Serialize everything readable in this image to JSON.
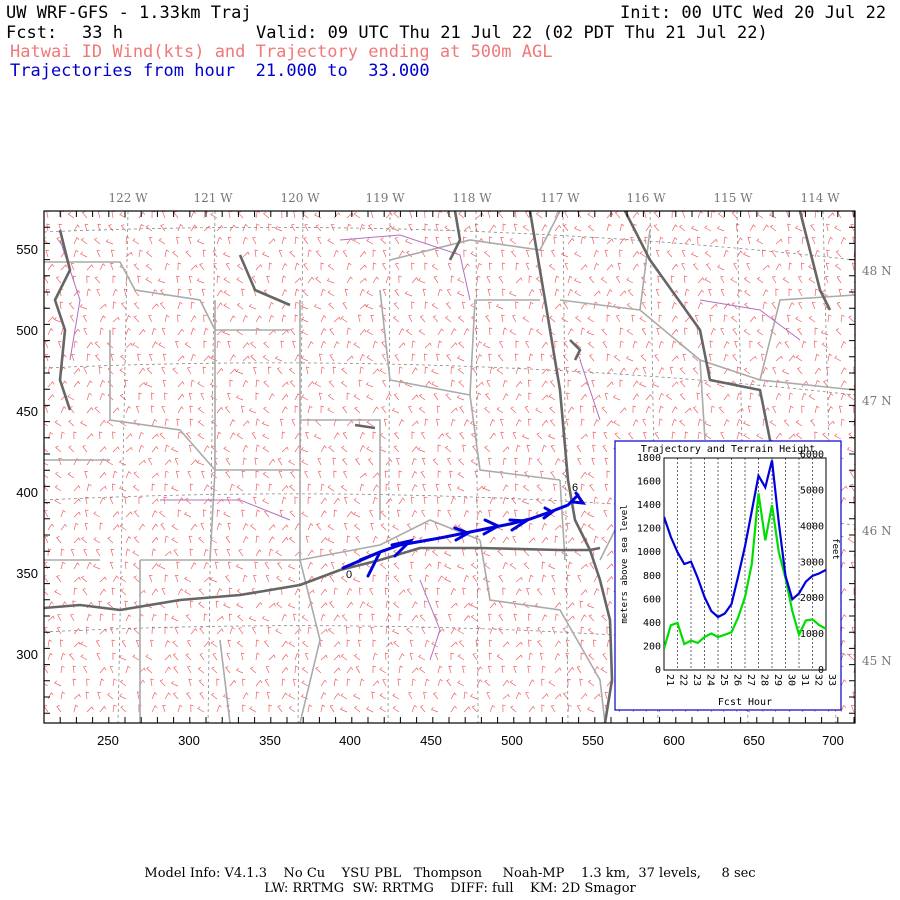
{
  "header": {
    "title": "UW WRF-GFS - 1.33km Traj",
    "init": "Init: 00 UTC Wed 20 Jul 22",
    "fcst_label": "Fcst:",
    "fcst_value": "33 h",
    "valid": "Valid: 09 UTC Thu 21 Jul 22 (02 PDT Thu 21 Jul 22)",
    "subtitle": "Hatwai ID Wind(kts) and Trajectory ending at 500m AGL",
    "traj_label": "Trajectories from hour  21.000 to  33.000"
  },
  "map": {
    "lon_labels": [
      "122 W",
      "121 W",
      "120 W",
      "119 W",
      "118 W",
      "117 W",
      "116 W",
      "115 W",
      "114 W"
    ],
    "lat_labels": [
      "48 N",
      "47 N",
      "46 N",
      "45 N"
    ],
    "x_ticks": [
      "250",
      "300",
      "350",
      "400",
      "450",
      "500",
      "550",
      "600",
      "650",
      "700"
    ],
    "y_ticks": [
      "550",
      "500",
      "450",
      "400",
      "350",
      "300"
    ],
    "colors": {
      "wind_barbs": "#f06060",
      "state_lines": "#666666",
      "county_lines": "#aaaaaa",
      "rivers": "#b070c0",
      "trajectory": "#0000dd"
    },
    "trajectory_start_label": "0",
    "trajectory_end_label": "6"
  },
  "inset": {
    "title": "Trajectory and Terrain Height",
    "ylabel_left": "meters above sea level",
    "ylabel_right": "feet",
    "xlabel": "Fcst Hour",
    "left_ticks": [
      "0",
      "200",
      "400",
      "600",
      "800",
      "1000",
      "1200",
      "1400",
      "1600",
      "1800"
    ],
    "right_ticks": [
      "0",
      "1000",
      "2000",
      "3000",
      "4000",
      "5000",
      "6000"
    ],
    "x_ticks": [
      "21",
      "22",
      "23",
      "24",
      "25",
      "26",
      "27",
      "28",
      "29",
      "30",
      "31",
      "32",
      "33"
    ],
    "colors": {
      "trajectory": "#0000dd",
      "terrain": "#00dd00"
    }
  },
  "chart_data": {
    "type": "line",
    "title": "Trajectory and Terrain Height",
    "xlabel": "Fcst Hour",
    "ylabel": "meters above sea level",
    "xlim": [
      21,
      33
    ],
    "ylim": [
      0,
      1800
    ],
    "series": [
      {
        "name": "",
        "x": [
          21,
          21.5,
          22,
          22.5,
          23,
          23.5,
          24,
          24.5,
          25,
          25.5,
          26,
          26.5,
          27,
          27.5,
          28,
          28.5,
          29,
          29.5,
          30,
          30.5,
          31,
          31.5,
          32,
          32.5,
          33
        ],
        "values": [
          1300,
          1130,
          1000,
          900,
          920,
          780,
          620,
          500,
          450,
          480,
          560,
          800,
          1050,
          1350,
          1650,
          1550,
          1780,
          1250,
          800,
          600,
          650,
          750,
          800,
          820,
          850
        ]
      },
      {
        "name": "",
        "x": [
          21,
          21.5,
          22,
          22.5,
          23,
          23.5,
          24,
          24.5,
          25,
          25.5,
          26,
          26.5,
          27,
          27.5,
          28,
          28.5,
          29,
          29.5,
          30,
          30.5,
          31,
          31.5,
          32,
          32.5,
          33
        ],
        "values": [
          180,
          380,
          400,
          220,
          250,
          230,
          280,
          310,
          280,
          300,
          320,
          450,
          620,
          900,
          1500,
          1100,
          1400,
          1000,
          780,
          500,
          300,
          420,
          430,
          380,
          350
        ]
      }
    ]
  },
  "footer": {
    "line1": "Model Info: V4.1.3    No Cu    YSU PBL   Thompson     Noah-MP    1.3 km,  37 levels,     8 sec",
    "line2": "LW: RRTMG  SW: RRTMG    DIFF: full    KM: 2D Smagor"
  }
}
